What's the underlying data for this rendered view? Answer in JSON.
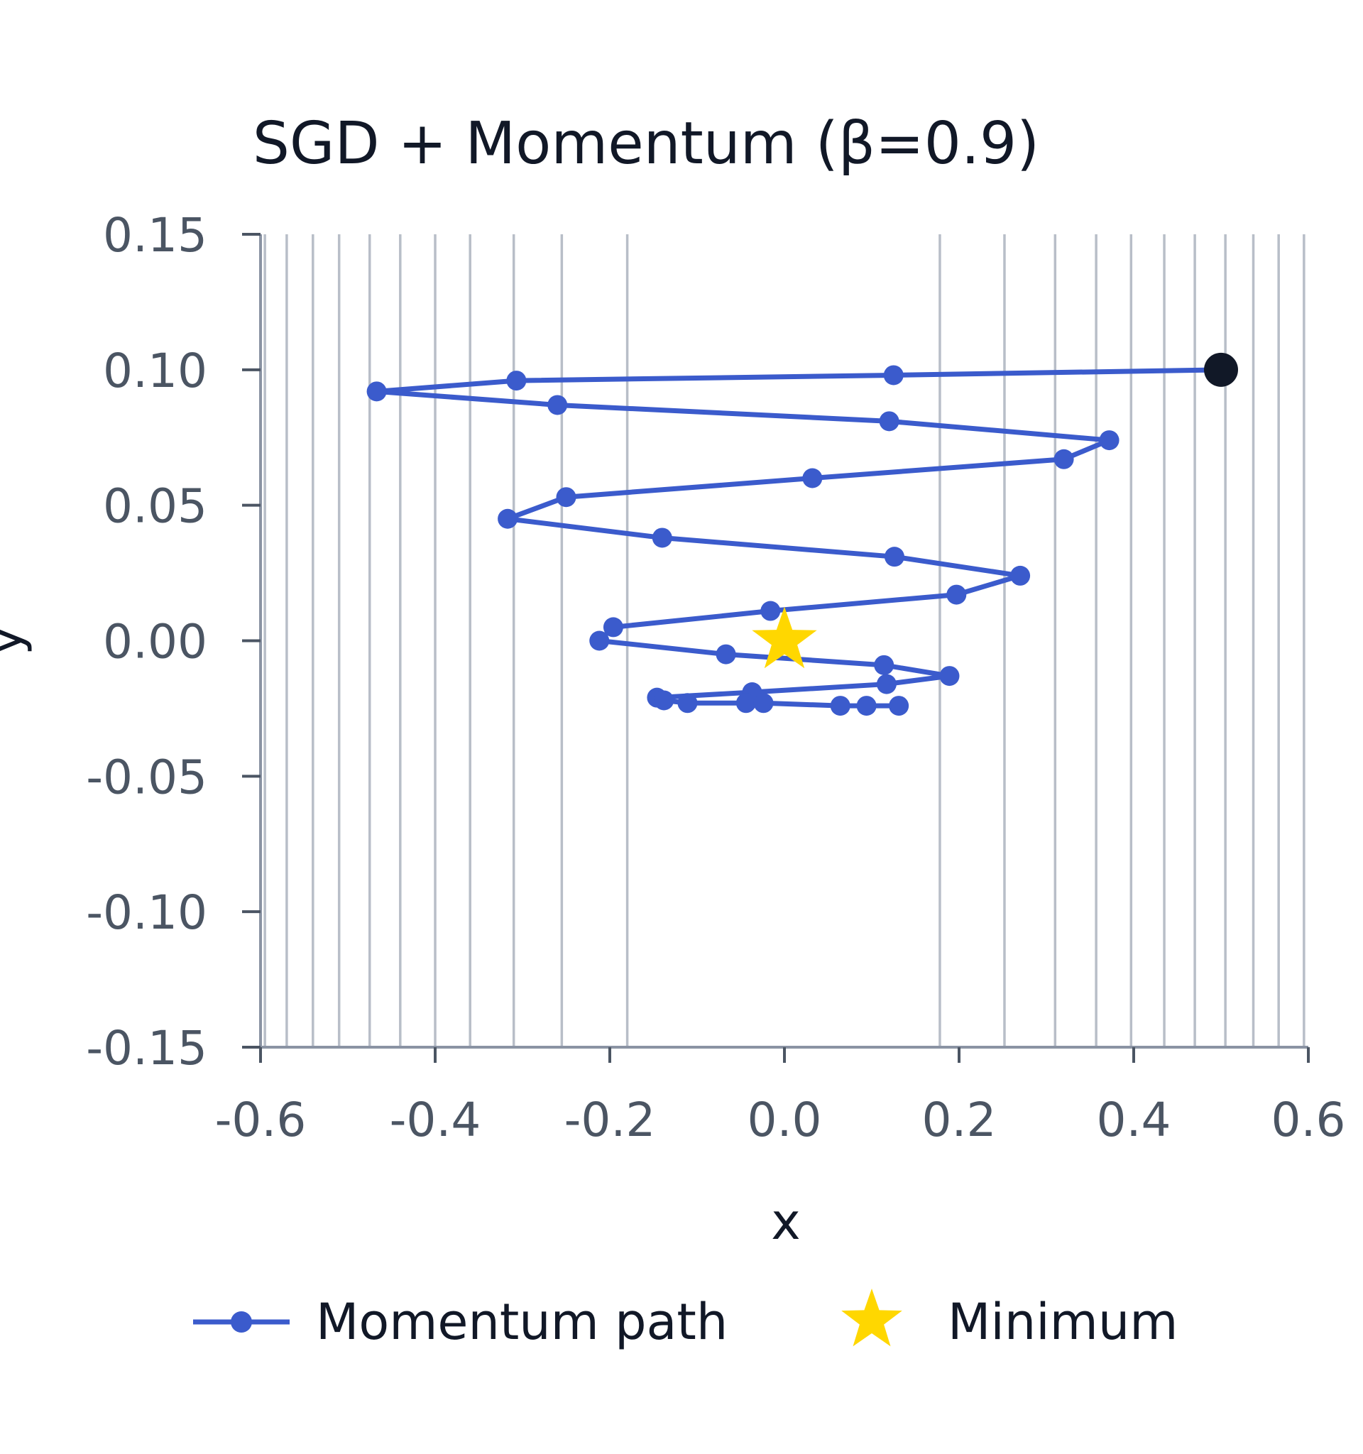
{
  "chart_data": {
    "type": "line",
    "title": "SGD + Momentum (β=0.9)",
    "xlabel": "x",
    "ylabel": "y",
    "xlim": [
      -0.6,
      0.6
    ],
    "ylim": [
      -0.15,
      0.15
    ],
    "x_ticks": [
      "-0.6",
      "-0.4",
      "-0.2",
      "0.0",
      "0.2",
      "0.4",
      "0.6"
    ],
    "y_ticks": [
      "0.15",
      "0.10",
      "0.05",
      "0.00",
      "-0.05",
      "-0.10",
      "-0.15"
    ],
    "x_tick_values": [
      -0.6,
      -0.4,
      -0.2,
      0.0,
      0.2,
      0.4,
      0.6
    ],
    "y_tick_values": [
      0.15,
      0.1,
      0.05,
      0.0,
      -0.05,
      -0.1,
      -0.15
    ],
    "vertical_gridlines_x": [
      -0.595,
      -0.57,
      -0.54,
      -0.51,
      -0.475,
      -0.44,
      -0.4,
      -0.36,
      -0.31,
      -0.255,
      -0.18,
      0.178,
      0.252,
      0.31,
      0.357,
      0.397,
      0.435,
      0.47,
      0.505,
      0.537,
      0.566,
      0.595
    ],
    "legend_position": "bottom",
    "series": [
      {
        "name": "Momentum path",
        "color": "#3b5bcc",
        "x": [
          0.5,
          0.125,
          -0.307,
          -0.467,
          -0.26,
          0.12,
          0.372,
          0.32,
          0.032,
          -0.25,
          -0.317,
          -0.14,
          0.126,
          0.27,
          0.197,
          -0.016,
          -0.196,
          -0.212,
          -0.067,
          0.114,
          0.189,
          0.117,
          -0.037,
          -0.146,
          -0.138,
          -0.111,
          -0.044,
          -0.024,
          0.064,
          0.094,
          0.131
        ],
        "y": [
          0.1,
          0.098,
          0.096,
          0.092,
          0.087,
          0.081,
          0.074,
          0.067,
          0.06,
          0.053,
          0.045,
          0.038,
          0.031,
          0.024,
          0.017,
          0.011,
          0.005,
          0.0,
          -0.005,
          -0.009,
          -0.013,
          -0.016,
          -0.019,
          -0.021,
          -0.022,
          -0.023,
          -0.023,
          -0.023,
          -0.024,
          -0.024,
          -0.024
        ]
      }
    ],
    "start_point": {
      "x": 0.5,
      "y": 0.1,
      "color": "#111827"
    },
    "minimum": {
      "name": "Minimum",
      "x": 0.0,
      "y": 0.0,
      "color": "#ffd700"
    }
  }
}
